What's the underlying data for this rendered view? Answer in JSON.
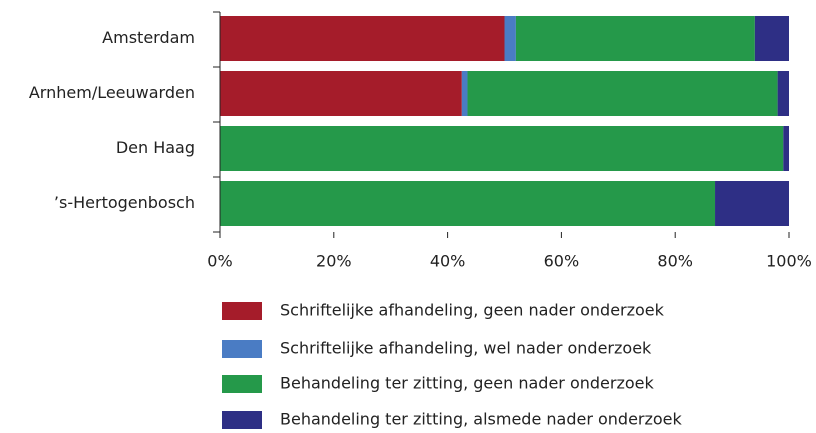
{
  "chart_data": {
    "type": "bar",
    "orientation": "horizontal",
    "stacked": true,
    "categories": [
      "Amsterdam",
      "Arnhem/Leeuwarden",
      "Den Haag",
      "’s-Hertogenbosch"
    ],
    "series": [
      {
        "name": "Schriftelijke afhandeling, geen nader onderzoek",
        "color": "#a51c2a",
        "values": [
          50,
          42.5,
          0,
          0
        ]
      },
      {
        "name": "Schriftelijke afhandeling, wel nader onderzoek",
        "color": "#4a7cc4",
        "values": [
          2,
          1,
          0,
          0
        ]
      },
      {
        "name": "Behandeling ter zitting, geen nader onderzoek",
        "color": "#25994a",
        "values": [
          42,
          54.5,
          99,
          87
        ]
      },
      {
        "name": "Behandeling ter zitting, alsmede nader onderzoek",
        "color": "#2e2f85",
        "values": [
          6,
          2,
          1,
          13
        ]
      }
    ],
    "xlim": [
      0,
      100
    ],
    "xticks": [
      {
        "value": 0,
        "label": "0%"
      },
      {
        "value": 20,
        "label": "20%"
      },
      {
        "value": 40,
        "label": "40%"
      },
      {
        "value": 60,
        "label": "60%"
      },
      {
        "value": 80,
        "label": "80%"
      },
      {
        "value": 100,
        "label": "100%"
      }
    ],
    "legend": "bottom"
  }
}
